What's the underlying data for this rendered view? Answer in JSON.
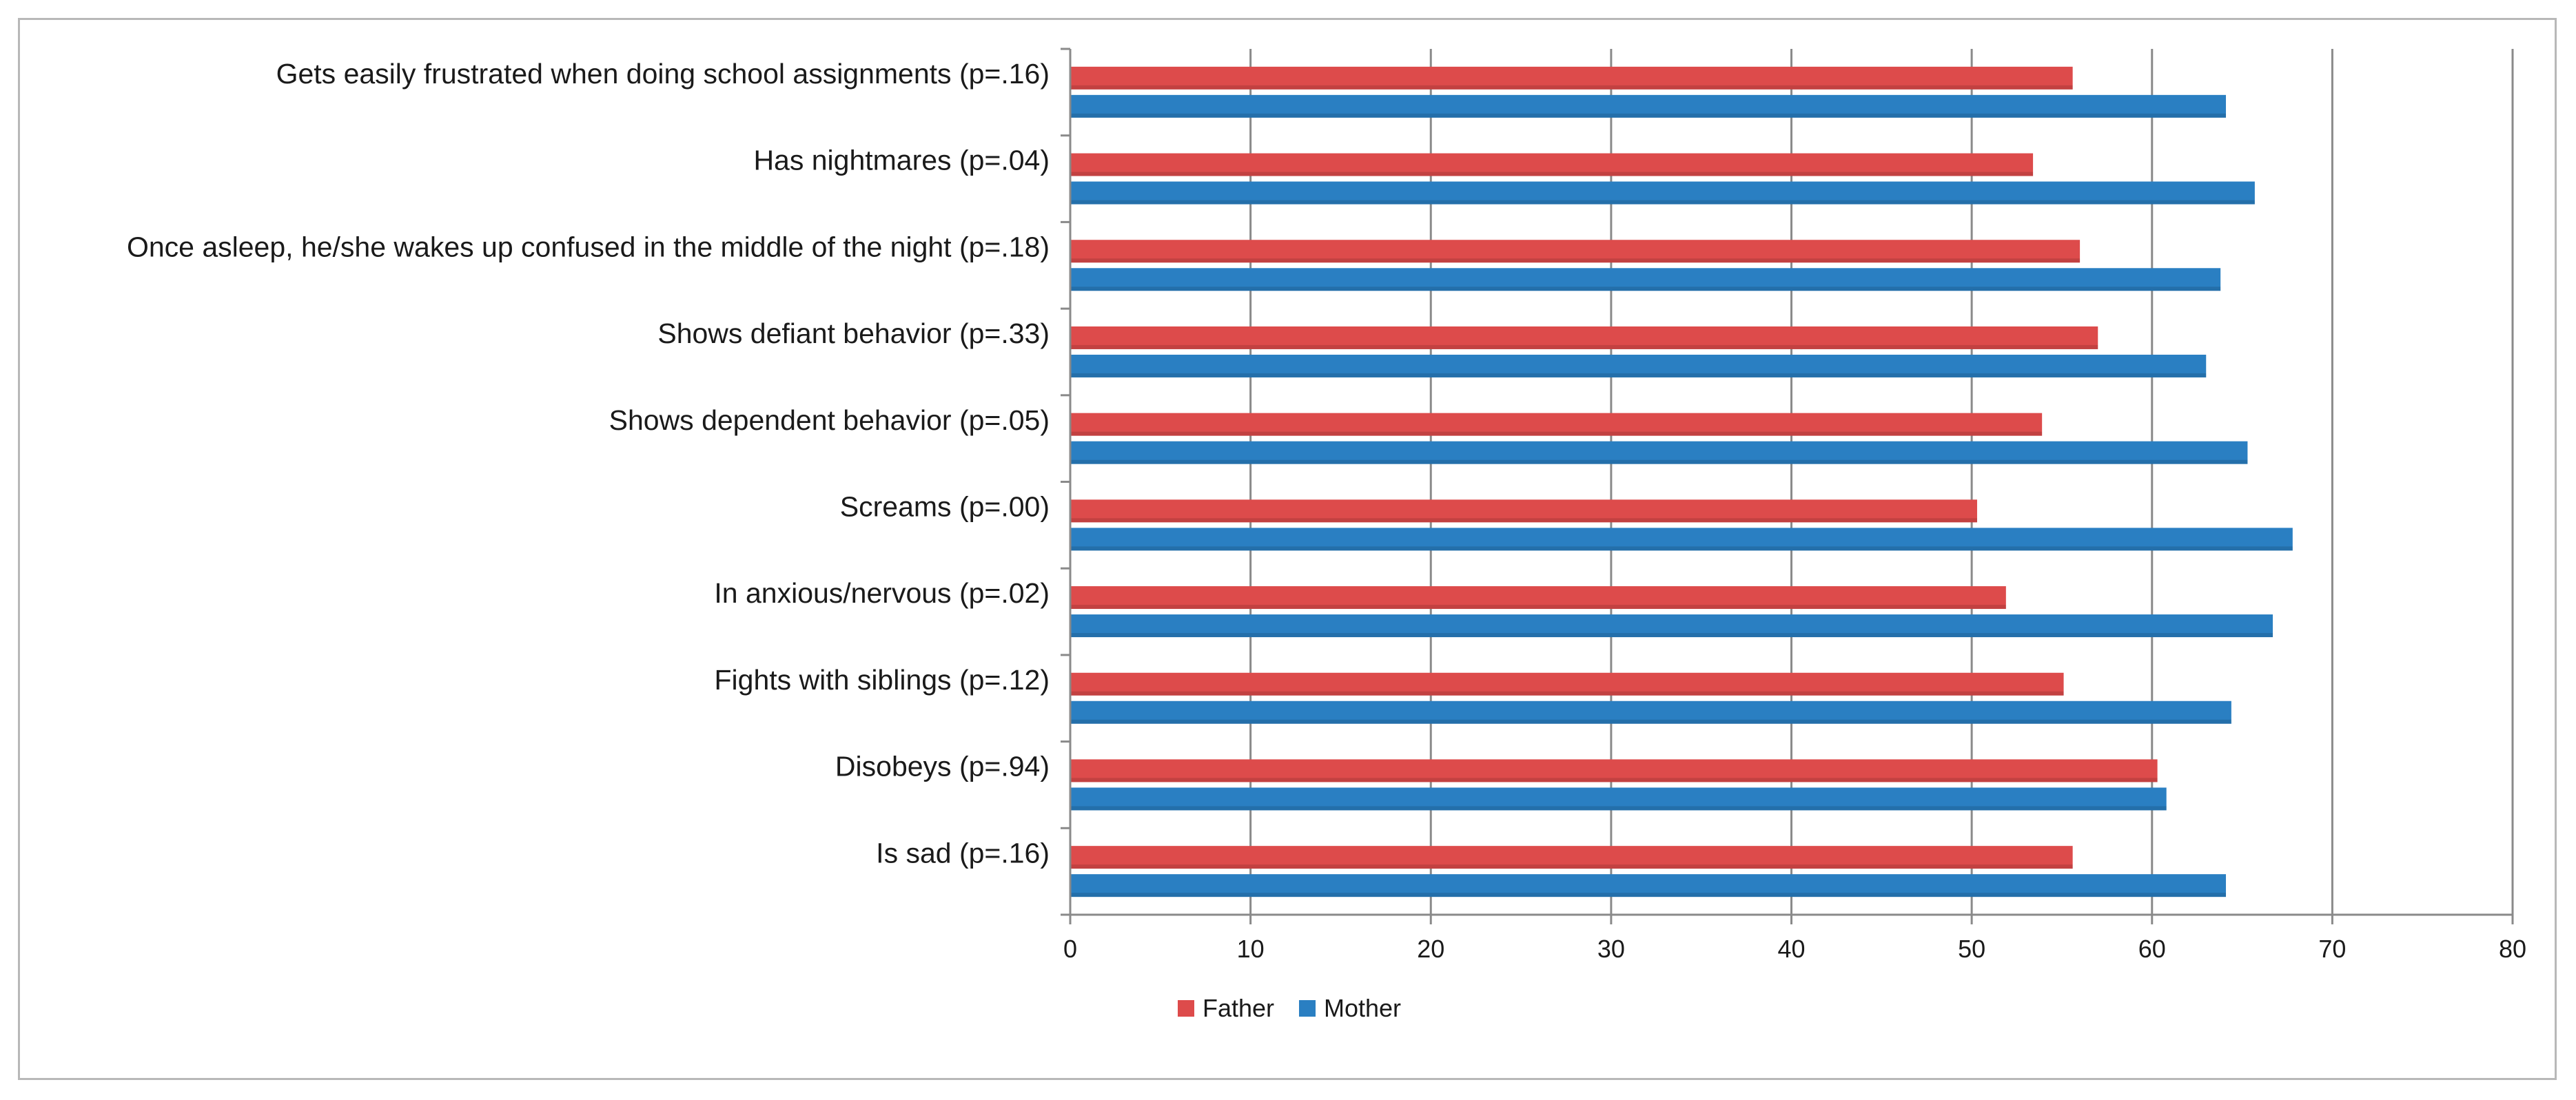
{
  "chart_data": {
    "type": "bar",
    "orientation": "horizontal",
    "categories": [
      "Gets easily frustrated when doing school assignments (p=.16)",
      "Has nightmares (p=.04)",
      "Once asleep, he/she wakes up confused in the middle of the night (p=.18)",
      "Shows defiant behavior (p=.33)",
      "Shows dependent behavior (p=.05)",
      "Screams (p=.00)",
      "In anxious/nervous (p=.02)",
      "Fights with siblings (p=.12)",
      "Disobeys (p=.94)",
      "Is sad (p=.16)"
    ],
    "series": [
      {
        "name": "Father",
        "color": "#dd4b4b",
        "values": [
          55.6,
          53.4,
          56.0,
          57.0,
          53.9,
          50.3,
          51.9,
          55.1,
          60.3,
          55.6
        ]
      },
      {
        "name": "Mother",
        "color": "#2a7fc2",
        "values": [
          64.1,
          65.7,
          63.8,
          63.0,
          65.3,
          67.8,
          66.7,
          64.4,
          60.8,
          64.1
        ]
      }
    ],
    "xlim": [
      0,
      80
    ],
    "xticks": [
      "0",
      "10",
      "20",
      "30",
      "40",
      "50",
      "60",
      "70",
      "80"
    ],
    "grid": "vertical",
    "legend": "bottom",
    "title": "",
    "xlabel": "",
    "ylabel": ""
  }
}
